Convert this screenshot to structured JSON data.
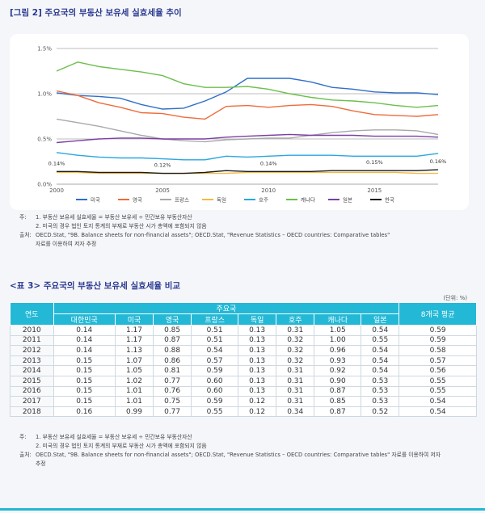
{
  "figure": {
    "title": "[그림 2] 주요국의 부동산 보유세 실효세율 추이",
    "notes": [
      {
        "lead": "주:",
        "text": "1. 부동산 보유세 실효세율 = 부동산 보유세 ÷ 민간보유 부동산자산"
      },
      {
        "lead": "",
        "text": "2. 미국의 경우 법인 토지 통계의 부재로 부동산 시가 총액에 포함되지 않음"
      },
      {
        "lead": "출처:",
        "text": "OECD.Stat, \"9B. Balance sheets for non-financial assets\"; OECD.Stat, \"Revenue Statistics – OECD countries: Comparative tables\""
      },
      {
        "lead": "",
        "text": "자료를 이용하여 저자 추정"
      }
    ]
  },
  "chart_data": {
    "type": "line",
    "title": "",
    "xlabel": "",
    "ylabel": "",
    "xlim": [
      2000,
      2018
    ],
    "ylim": [
      0,
      1.5
    ],
    "x_ticks": [
      "2000",
      "2005",
      "2010",
      "2015"
    ],
    "y_ticks": [
      "0.0%",
      "0.5%",
      "1.0%",
      "1.5%"
    ],
    "grid": true,
    "legend_position": "bottom",
    "annotations": [
      {
        "x": 2000,
        "text": "0.14%"
      },
      {
        "x": 2005,
        "text": "0.12%"
      },
      {
        "x": 2010,
        "text": "0.14%"
      },
      {
        "x": 2015,
        "text": "0.15%"
      },
      {
        "x": 2018,
        "text": "0.16%"
      }
    ],
    "x": [
      2000,
      2001,
      2002,
      2003,
      2004,
      2005,
      2006,
      2007,
      2008,
      2009,
      2010,
      2011,
      2012,
      2013,
      2014,
      2015,
      2016,
      2017,
      2018
    ],
    "series": [
      {
        "name": "미국",
        "color": "#2f6fc9",
        "values": [
          1.01,
          0.98,
          0.97,
          0.95,
          0.88,
          0.83,
          0.84,
          0.92,
          1.02,
          1.17,
          1.17,
          1.17,
          1.13,
          1.07,
          1.05,
          1.02,
          1.01,
          1.01,
          0.99
        ]
      },
      {
        "name": "영국",
        "color": "#ee6b3b",
        "values": [
          1.03,
          0.98,
          0.9,
          0.85,
          0.79,
          0.78,
          0.74,
          0.72,
          0.86,
          0.87,
          0.85,
          0.87,
          0.88,
          0.86,
          0.81,
          0.77,
          0.76,
          0.75,
          0.77
        ]
      },
      {
        "name": "프랑스",
        "color": "#a9a9a9",
        "values": [
          0.72,
          0.68,
          0.64,
          0.59,
          0.54,
          0.5,
          0.48,
          0.47,
          0.49,
          0.5,
          0.51,
          0.51,
          0.54,
          0.57,
          0.59,
          0.6,
          0.6,
          0.59,
          0.55
        ]
      },
      {
        "name": "독일",
        "color": "#f4b942",
        "values": [
          0.13,
          0.13,
          0.12,
          0.12,
          0.12,
          0.12,
          0.12,
          0.12,
          0.12,
          0.13,
          0.13,
          0.13,
          0.13,
          0.13,
          0.13,
          0.13,
          0.13,
          0.12,
          0.12
        ]
      },
      {
        "name": "호주",
        "color": "#2aa6e0",
        "values": [
          0.35,
          0.32,
          0.3,
          0.29,
          0.29,
          0.28,
          0.27,
          0.27,
          0.31,
          0.3,
          0.31,
          0.32,
          0.32,
          0.32,
          0.31,
          0.31,
          0.31,
          0.31,
          0.34
        ]
      },
      {
        "name": "캐나다",
        "color": "#6cbf4b",
        "values": [
          1.25,
          1.35,
          1.3,
          1.27,
          1.24,
          1.2,
          1.11,
          1.07,
          1.07,
          1.08,
          1.05,
          1.0,
          0.96,
          0.93,
          0.92,
          0.9,
          0.87,
          0.85,
          0.87
        ]
      },
      {
        "name": "일본",
        "color": "#7b3fa3",
        "values": [
          0.46,
          0.48,
          0.5,
          0.51,
          0.51,
          0.5,
          0.5,
          0.5,
          0.52,
          0.53,
          0.54,
          0.55,
          0.54,
          0.54,
          0.54,
          0.53,
          0.53,
          0.53,
          0.52
        ]
      },
      {
        "name": "한국",
        "color": "#1a1a1a",
        "values": [
          0.14,
          0.14,
          0.13,
          0.13,
          0.13,
          0.12,
          0.12,
          0.13,
          0.15,
          0.14,
          0.14,
          0.14,
          0.14,
          0.15,
          0.15,
          0.15,
          0.15,
          0.15,
          0.16
        ]
      }
    ]
  },
  "table": {
    "title": "<표 3> 주요국의 부동산 보유세 실효세율 비교",
    "unit": "(단위: %)",
    "header_year": "연도",
    "header_group": "주요국",
    "header_avg": "8개국 평균",
    "countries": [
      "대한민국",
      "미국",
      "영국",
      "프랑스",
      "독일",
      "호주",
      "캐나다",
      "일본"
    ],
    "rows": [
      [
        "2010",
        "0.14",
        "1.17",
        "0.85",
        "0.51",
        "0.13",
        "0.31",
        "1.05",
        "0.54",
        "0.59"
      ],
      [
        "2011",
        "0.14",
        "1.17",
        "0.87",
        "0.51",
        "0.13",
        "0.32",
        "1.00",
        "0.55",
        "0.59"
      ],
      [
        "2012",
        "0.14",
        "1.13",
        "0.88",
        "0.54",
        "0.13",
        "0.32",
        "0.96",
        "0.54",
        "0.58"
      ],
      [
        "2013",
        "0.15",
        "1.07",
        "0.86",
        "0.57",
        "0.13",
        "0.32",
        "0.93",
        "0.54",
        "0.57"
      ],
      [
        "2014",
        "0.15",
        "1.05",
        "0.81",
        "0.59",
        "0.13",
        "0.31",
        "0.92",
        "0.54",
        "0.56"
      ],
      [
        "2015",
        "0.15",
        "1.02",
        "0.77",
        "0.60",
        "0.13",
        "0.31",
        "0.90",
        "0.53",
        "0.55"
      ],
      [
        "2016",
        "0.15",
        "1.01",
        "0.76",
        "0.60",
        "0.13",
        "0.31",
        "0.87",
        "0.53",
        "0.55"
      ],
      [
        "2017",
        "0.15",
        "1.01",
        "0.75",
        "0.59",
        "0.12",
        "0.31",
        "0.85",
        "0.53",
        "0.54"
      ],
      [
        "2018",
        "0.16",
        "0.99",
        "0.77",
        "0.55",
        "0.12",
        "0.34",
        "0.87",
        "0.52",
        "0.54"
      ]
    ],
    "notes": [
      {
        "lead": "주:",
        "text": "1. 부동산 보유세 실효세율 = 부동산 보유세 ÷ 민간보유 부동산자산"
      },
      {
        "lead": "",
        "text": "2. 미국의 경우 법인 토지 통계의 부재로 부동산 시가 총액에 포함되지 않음"
      },
      {
        "lead": "출처:",
        "text": "OECD.Stat, \"9B. Balance sheets for non-financial assets\"; OECD.Stat, \"Revenue Statistics – OECD countries: Comparative tables\" 자료를 이용하여 저자"
      },
      {
        "lead": "",
        "text": "추정"
      }
    ]
  }
}
